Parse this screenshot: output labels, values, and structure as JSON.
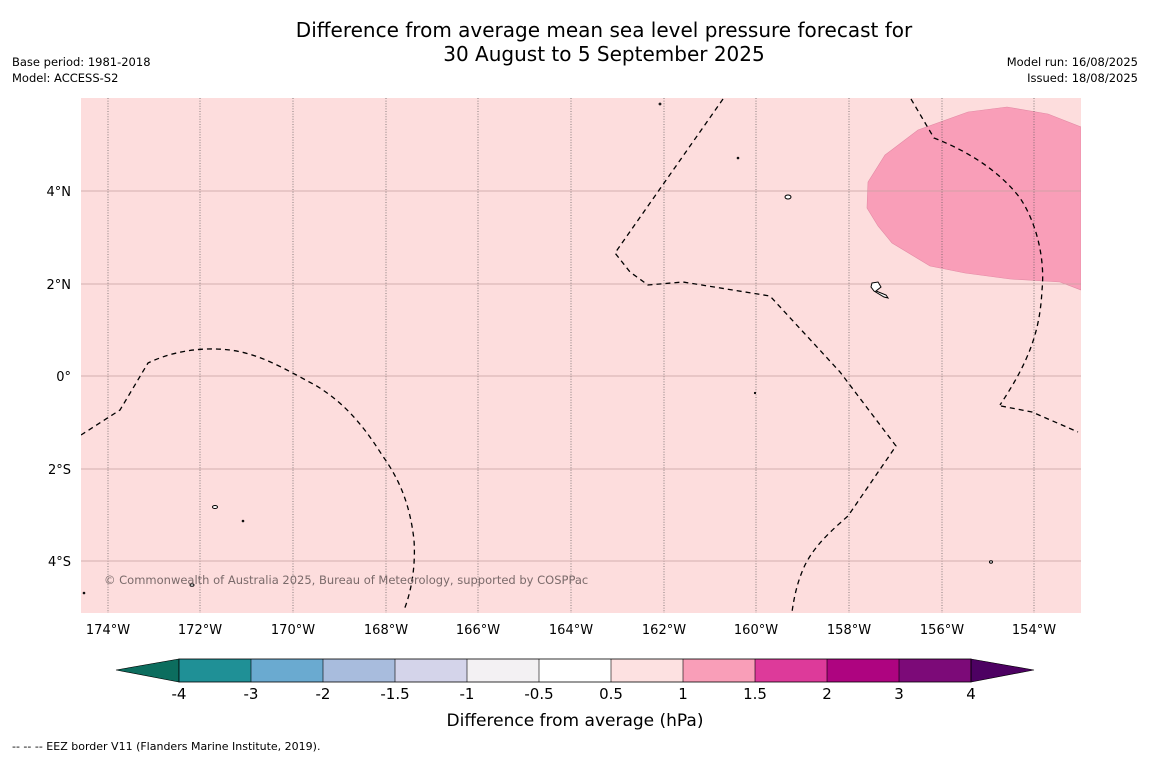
{
  "title": {
    "line1": "Difference from average mean sea level pressure forecast for",
    "line2": "30 August to 5 September 2025"
  },
  "meta_left": {
    "base_period": "Base period: 1981-2018",
    "model": "Model: ACCESS-S2"
  },
  "meta_right": {
    "model_run": "Model run: 16/08/2025",
    "issued": "Issued: 18/08/2025"
  },
  "map": {
    "background_color": "#fddddd",
    "anomaly_color": "#f99eb8",
    "lon_labels": [
      "174°W",
      "172°W",
      "170°W",
      "168°W",
      "166°W",
      "164°W",
      "162°W",
      "160°W",
      "158°W",
      "156°W",
      "154°W"
    ],
    "lat_labels": [
      "4°N",
      "2°N",
      "0°",
      "2°S",
      "4°S"
    ],
    "copyright": "© Commonwealth of Australia 2025, Bureau of Meteorology, supported by COSPPac"
  },
  "colorbar": {
    "label": "Difference from average (hPa)",
    "ticks": [
      "-4",
      "-3",
      "-2",
      "-1.5",
      "-1",
      "-0.5",
      "0.5",
      "1",
      "1.5",
      "2",
      "3",
      "4"
    ],
    "colors": [
      "#0c6d5e",
      "#1f9096",
      "#6aaad0",
      "#a8bcdd",
      "#d4d4ea",
      "#f3f1f3",
      "#ffffff",
      "#fde1e1",
      "#f99eb8",
      "#dd3a9a",
      "#ae0480",
      "#7c0a78",
      "#4d0162"
    ]
  },
  "footer": "--  --  -- EEZ border V11 (Flanders Marine Institute, 2019)."
}
